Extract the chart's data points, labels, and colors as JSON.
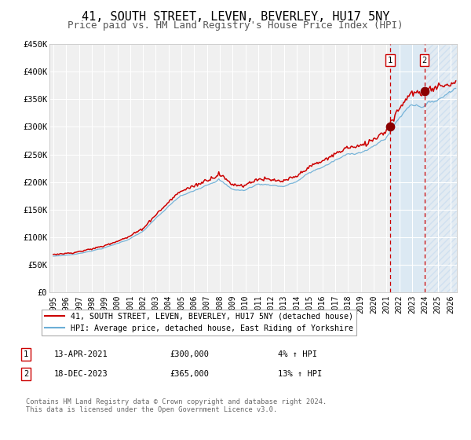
{
  "title": "41, SOUTH STREET, LEVEN, BEVERLEY, HU17 5NY",
  "subtitle": "Price paid vs. HM Land Registry's House Price Index (HPI)",
  "ylim": [
    0,
    450000
  ],
  "yticks": [
    0,
    50000,
    100000,
    150000,
    200000,
    250000,
    300000,
    350000,
    400000,
    450000
  ],
  "ytick_labels": [
    "£0",
    "£50K",
    "£100K",
    "£150K",
    "£200K",
    "£250K",
    "£300K",
    "£350K",
    "£400K",
    "£450K"
  ],
  "xlim_start": 1994.7,
  "xlim_end": 2026.5,
  "xticks": [
    1995,
    1996,
    1997,
    1998,
    1999,
    2000,
    2001,
    2002,
    2003,
    2004,
    2005,
    2006,
    2007,
    2008,
    2009,
    2010,
    2011,
    2012,
    2013,
    2014,
    2015,
    2016,
    2017,
    2018,
    2019,
    2020,
    2021,
    2022,
    2023,
    2024,
    2025,
    2026
  ],
  "hpi_color": "#6baed6",
  "property_color": "#cc0000",
  "dot_color": "#8b0000",
  "sale1_x": 2021.28,
  "sale1_y": 300000,
  "sale2_x": 2023.96,
  "sale2_y": 365000,
  "shade_solid_start": 2021.28,
  "shade_solid_end": 2023.96,
  "shade_hatch_start": 2023.96,
  "shade_hatch_end": 2026.5,
  "legend_line1": "41, SOUTH STREET, LEVEN, BEVERLEY, HU17 5NY (detached house)",
  "legend_line2": "HPI: Average price, detached house, East Riding of Yorkshire",
  "table_row1_num": "1",
  "table_row1_date": "13-APR-2021",
  "table_row1_price": "£300,000",
  "table_row1_hpi": "4% ↑ HPI",
  "table_row2_num": "2",
  "table_row2_date": "18-DEC-2023",
  "table_row2_price": "£365,000",
  "table_row2_hpi": "13% ↑ HPI",
  "footer": "Contains HM Land Registry data © Crown copyright and database right 2024.\nThis data is licensed under the Open Government Licence v3.0.",
  "background_color": "#ffffff",
  "plot_bg_color": "#f0f0f0",
  "grid_color": "#ffffff",
  "title_fontsize": 11,
  "subtitle_fontsize": 9
}
